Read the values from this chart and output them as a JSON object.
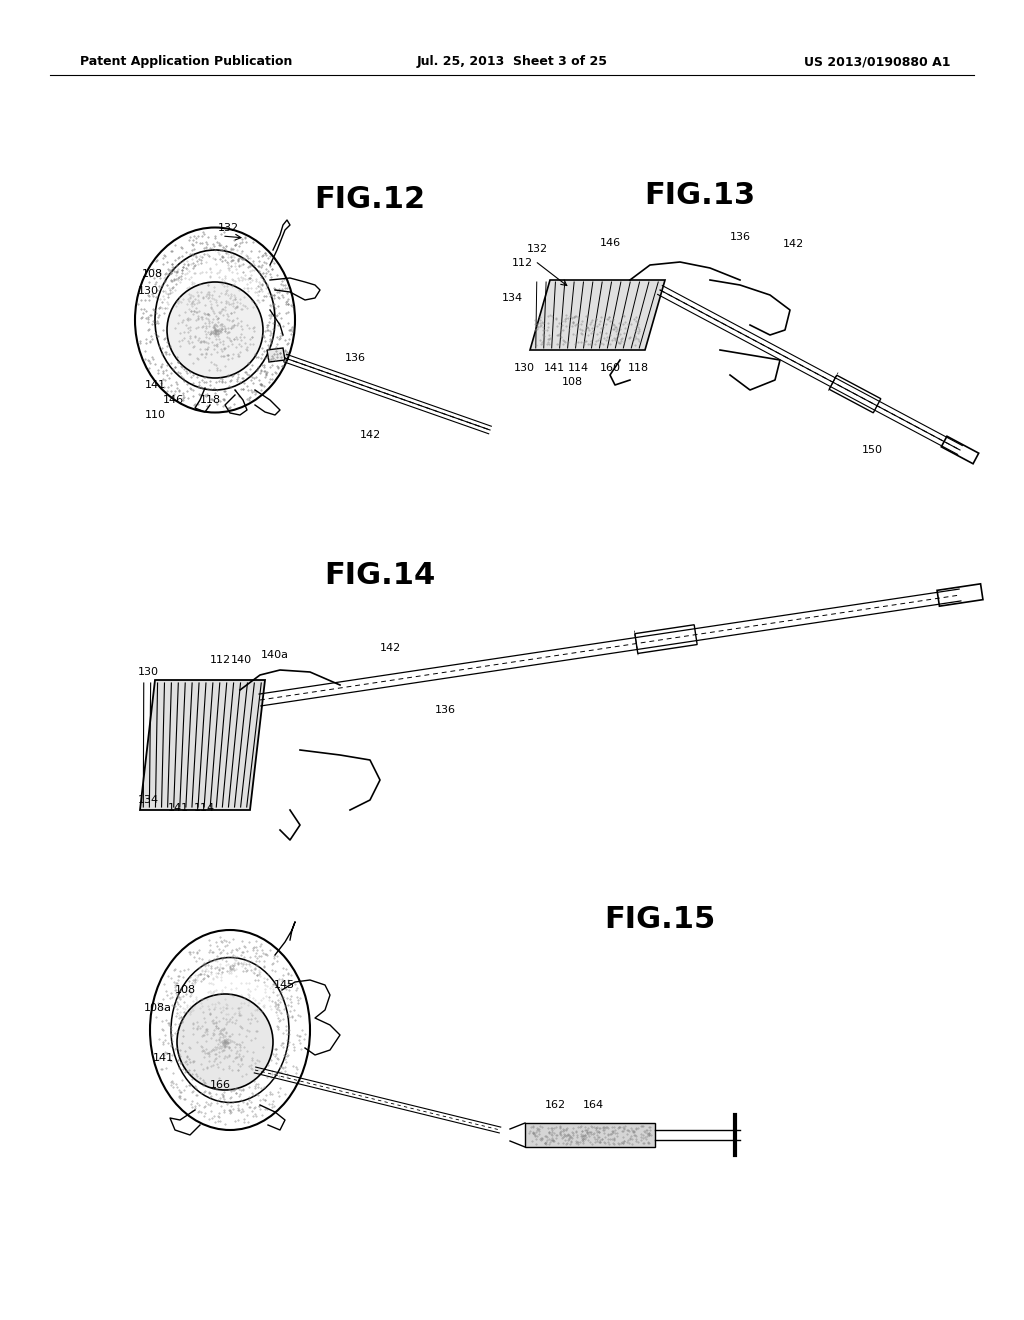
{
  "background_color": "#ffffff",
  "page_width": 10.24,
  "page_height": 13.2,
  "header_left": "Patent Application Publication",
  "header_center": "Jul. 25, 2013  Sheet 3 of 25",
  "header_right": "US 2013/0190880 A1",
  "header_fontsize": 9
}
